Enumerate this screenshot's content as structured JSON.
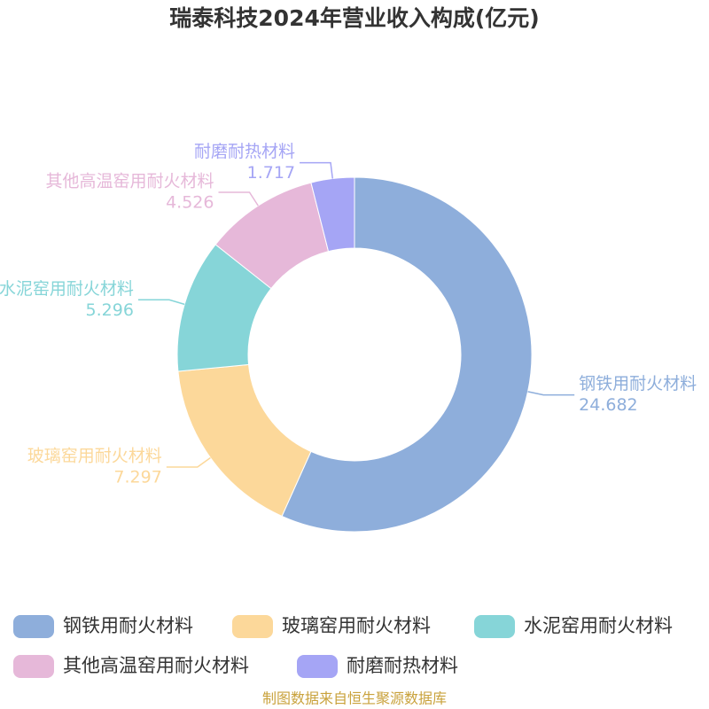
{
  "chart_data": {
    "type": "donut",
    "title": "瑞泰科技2024年营业收入构成(亿元)",
    "categories": [
      "钢铁用耐火材料",
      "玻璃窑用耐火材料",
      "水泥窑用耐火材料",
      "其他高温窑用耐火材料",
      "耐磨耐热材料"
    ],
    "values": [
      24.682,
      7.297,
      5.296,
      4.526,
      1.717
    ],
    "colors": [
      "#8eaedb",
      "#fcd89a",
      "#86d5d8",
      "#e6b8d9",
      "#a5a5f5"
    ],
    "source": "制图数据来自恒生聚源数据库"
  }
}
